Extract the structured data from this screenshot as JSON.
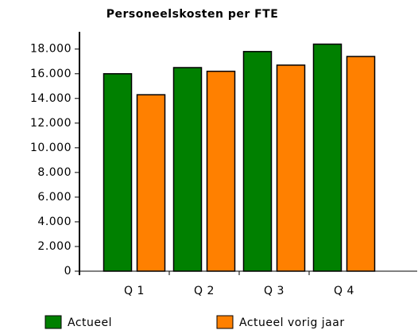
{
  "chart_data": {
    "type": "bar",
    "title": "Personeelskosten per FTE",
    "categories": [
      "Q 1",
      "Q 2",
      "Q 3",
      "Q 4"
    ],
    "series": [
      {
        "name": "Actueel",
        "color": "#008000",
        "values": [
          16000,
          16500,
          17800,
          18400
        ]
      },
      {
        "name": "Actueel vorig jaar",
        "color": "#ff8000",
        "values": [
          14300,
          16200,
          16700,
          17400
        ]
      }
    ],
    "ylim": [
      0,
      19400
    ],
    "yticks": [
      0,
      {
        "value": 2000,
        "label": "2.000"
      },
      {
        "value": 4000,
        "label": "4.000"
      },
      {
        "value": 6000,
        "label": "6.000"
      },
      {
        "value": 8000,
        "label": "8.000"
      },
      {
        "value": 10000,
        "label": "10.000"
      },
      {
        "value": 12000,
        "label": "12.000"
      },
      {
        "value": 14000,
        "label": "14.000"
      },
      {
        "value": 16000,
        "label": "16.000"
      },
      {
        "value": 18000,
        "label": "18.000"
      }
    ],
    "grid": false
  }
}
